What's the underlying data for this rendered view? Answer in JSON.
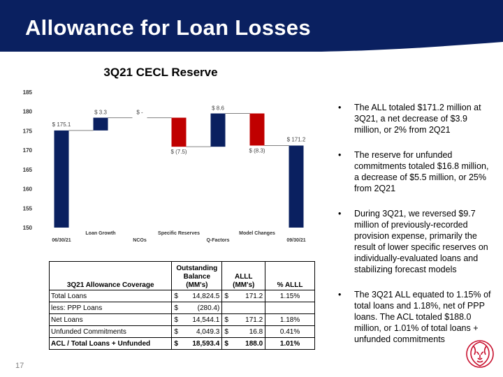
{
  "slide": {
    "title": "Allowance for Loan Losses",
    "page_number": "17",
    "colors": {
      "navy": "#0a2060",
      "red": "#c00000",
      "logo_red": "#c8102e"
    }
  },
  "chart_data": {
    "type": "waterfall",
    "title": "3Q21 CECL Reserve",
    "ylim": [
      150,
      185
    ],
    "yticks": [
      150,
      155,
      160,
      165,
      170,
      175,
      180,
      185
    ],
    "steps": [
      {
        "label": "06/30/21",
        "kind": "total",
        "value": 175.1,
        "data_label": "$ 175.1"
      },
      {
        "label": "Loan Growth",
        "kind": "delta",
        "value": 3.3,
        "data_label": "$ 3.3"
      },
      {
        "label": "NCOs",
        "kind": "delta",
        "value": 0,
        "data_label": "$ -"
      },
      {
        "label": "Specific Reserves",
        "kind": "delta",
        "value": -7.5,
        "data_label": "$ (7.5)"
      },
      {
        "label": "Q-Factors",
        "kind": "delta",
        "value": 8.6,
        "data_label": "$ 8.6"
      },
      {
        "label": "Model Changes",
        "kind": "delta",
        "value": -8.3,
        "data_label": "$ (8.3)"
      },
      {
        "label": "09/30/21",
        "kind": "total",
        "value": 171.2,
        "data_label": "$ 171.2"
      }
    ]
  },
  "bullets": [
    "The ALL totaled $171.2 million at 3Q21, a net decrease of $3.9 million, or 2% from 2Q21",
    "The reserve for unfunded commitments totaled $16.8 million, a decrease of $5.5 million, or 25% from 2Q21",
    "During 3Q21, we reversed $9.7 million of previously-recorded provision expense, primarily the result of lower specific reserves on individually-evaluated loans and stabilizing forecast models",
    "The 3Q21 ALL equated to 1.15% of total loans and 1.18%, net of PPP loans.  The ACL totaled $188.0 million, or 1.01% of total loans + unfunded commitments"
  ],
  "table": {
    "headers": {
      "label": "3Q21 Allowance Coverage",
      "balance": "Outstanding Balance (MM's)",
      "alll": "ALLL (MM's)",
      "pct": "% ALLL"
    },
    "rows": [
      {
        "label": "Total Loans",
        "bal_cur": "$",
        "balance": "14,824.5",
        "alll_cur": "$",
        "alll": "171.2",
        "pct": "1.15%"
      },
      {
        "label": "less: PPP Loans",
        "bal_cur": "$",
        "balance": "(280.4)",
        "alll_cur": "",
        "alll": "",
        "pct": ""
      },
      {
        "label": "Net Loans",
        "bal_cur": "$",
        "balance": "14,544.1",
        "alll_cur": "$",
        "alll": "171.2",
        "pct": "1.18%"
      },
      {
        "label": "Unfunded Commitments",
        "bal_cur": "$",
        "balance": "4,049.3",
        "alll_cur": "$",
        "alll": "16.8",
        "pct": "0.41%"
      },
      {
        "label": "ACL / Total Loans + Unfunded",
        "bal_cur": "$",
        "balance": "18,593.4",
        "alll_cur": "$",
        "alll": "188.0",
        "pct": "1.01%"
      }
    ]
  }
}
